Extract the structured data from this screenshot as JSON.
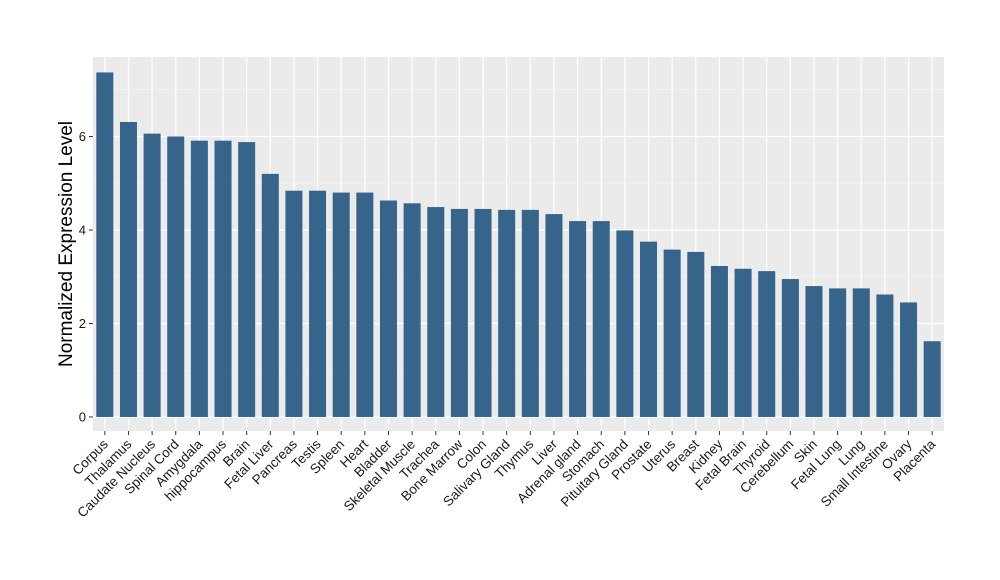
{
  "chart_data": {
    "type": "bar",
    "title": "",
    "xlabel": "",
    "ylabel": "Normalized Expression Level",
    "ylim": [
      -0.3,
      7.7
    ],
    "yticks": [
      0,
      2,
      4,
      6
    ],
    "grid": true,
    "legend": "none",
    "bar_color": "#36648b",
    "panel_color": "#ebebeb",
    "categories": [
      "Corpus",
      "Thalamus",
      "Caudate Nucleus",
      "Spinal Cord",
      "Amygdala",
      "hippocampus",
      "Brain",
      "Fetal Liver",
      "Pancreas",
      "Testis",
      "Spleen",
      "Heart",
      "Bladder",
      "Skeletal Muscle",
      "Trachea",
      "Bone Marrow",
      "Colon",
      "Salivary Gland",
      "Thymus",
      "Liver",
      "Adrenal gland",
      "Stomach",
      "Pituitary Gland",
      "Prostate",
      "Uterus",
      "Breast",
      "Kidney",
      "Fetal Brain",
      "Thyroid",
      "Cerebellum",
      "Skin",
      "Fetal Lung",
      "Lung",
      "Small Intestine",
      "Ovary",
      "Placenta"
    ],
    "values": [
      7.37,
      6.31,
      6.06,
      6.0,
      5.91,
      5.91,
      5.88,
      5.2,
      4.84,
      4.84,
      4.8,
      4.8,
      4.63,
      4.57,
      4.49,
      4.45,
      4.45,
      4.43,
      4.43,
      4.34,
      4.19,
      4.19,
      3.99,
      3.75,
      3.58,
      3.53,
      3.23,
      3.17,
      3.12,
      2.95,
      2.8,
      2.75,
      2.75,
      2.62,
      2.45,
      1.62
    ]
  }
}
